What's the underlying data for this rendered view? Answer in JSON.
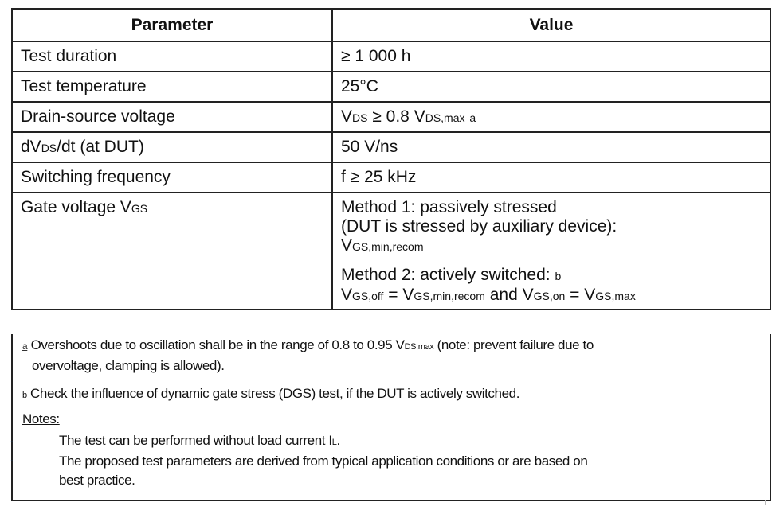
{
  "table": {
    "headers": [
      "Parameter",
      "Value"
    ],
    "rows": [
      {
        "param": [
          {
            "t": "Test duration"
          }
        ],
        "value": [
          [
            {
              "t": "≥ 1 000 h"
            }
          ]
        ]
      },
      {
        "param": [
          {
            "t": "Test temperature"
          }
        ],
        "value": [
          [
            {
              "t": "25°C"
            }
          ]
        ]
      },
      {
        "param": [
          {
            "t": "Drain-source voltage"
          }
        ],
        "value": [
          [
            {
              "t": "V"
            },
            {
              "t": "DS",
              "sub": true
            },
            {
              "t": " ≥ 0.8 V"
            },
            {
              "t": "DS,max",
              "sub": true
            },
            {
              "t": " "
            },
            {
              "t": "a",
              "sub": true
            }
          ]
        ]
      },
      {
        "param": [
          {
            "t": "dV"
          },
          {
            "t": "DS",
            "sub": true
          },
          {
            "t": "/dt (at DUT)"
          }
        ],
        "value": [
          [
            {
              "t": "50 V/ns"
            }
          ]
        ]
      },
      {
        "param": [
          {
            "t": "Switching frequency"
          }
        ],
        "value": [
          [
            {
              "t": "f ≥ 25 kHz"
            }
          ]
        ]
      },
      {
        "param": [
          {
            "t": "Gate voltage V"
          },
          {
            "t": "GS",
            "sub": true
          }
        ],
        "value": [
          [
            {
              "t": "Method 1: passively stressed"
            }
          ],
          [
            {
              "t": "(DUT is stressed by auxiliary device):"
            }
          ],
          [
            {
              "t": "V"
            },
            {
              "t": "GS,min,recom",
              "sub": true
            }
          ],
          [],
          [
            {
              "t": "Method 2: actively switched: "
            },
            {
              "t": "b",
              "sub": true
            }
          ],
          [
            {
              "t": "V"
            },
            {
              "t": "GS,off",
              "sub": true
            },
            {
              "t": " = V"
            },
            {
              "t": "GS,min,recom",
              "sub": true
            },
            {
              "t": " and V"
            },
            {
              "t": "GS,on",
              "sub": true
            },
            {
              "t": " = V"
            },
            {
              "t": "GS,max",
              "sub": true
            }
          ]
        ]
      }
    ]
  },
  "footnotes": {
    "a_marker": "a",
    "a_line1": [
      {
        "t": " Overshoots due to oscillation shall be in the range of 0.8 to 0.95 V"
      },
      {
        "t": "DS,max",
        "sub": true
      },
      {
        "t": " (note: prevent failure due to"
      }
    ],
    "a_line2": "overvoltage, clamping is allowed).",
    "b": [
      {
        "t": "b",
        "sub": true
      },
      {
        "t": " Check the influence of dynamic gate stress (DGS) test, if the DUT is actively switched."
      }
    ],
    "notes_label": "Notes:",
    "notes": [
      [
        {
          "t": "The test can be performed without load current I"
        },
        {
          "t": "L",
          "sub": true
        },
        {
          "t": "."
        }
      ],
      [
        {
          "t": "The proposed test parameters are derived from typical application conditions or are based on"
        }
      ],
      [
        {
          "t": "best practice."
        }
      ]
    ]
  },
  "colors": {
    "border": "#222222",
    "bullet": "#2a7fd4"
  }
}
